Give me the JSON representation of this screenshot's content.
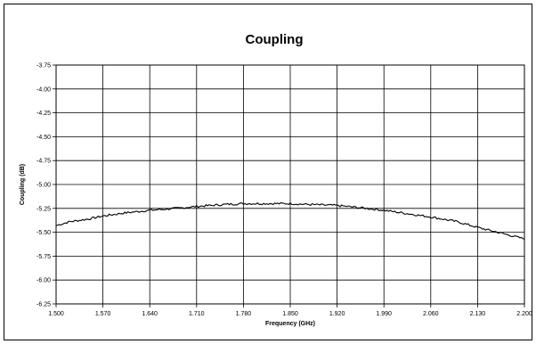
{
  "chart_data": {
    "type": "line",
    "title": "Coupling",
    "xlabel": "Frequency (GHz)",
    "ylabel": "Coupling (dB)",
    "xlim": [
      1.5,
      2.2
    ],
    "ylim": [
      -6.25,
      -3.75
    ],
    "x_ticks": [
      "1.500",
      "1.570",
      "1.640",
      "1.710",
      "1.780",
      "1.850",
      "1.920",
      "1.990",
      "2.060",
      "2.130",
      "2.200"
    ],
    "y_ticks": [
      "-3.75",
      "-4.00",
      "-4.25",
      "-4.50",
      "-4.75",
      "-5.00",
      "-5.25",
      "-5.50",
      "-5.75",
      "-6.00",
      "-6.25"
    ],
    "grid": true,
    "legend": "none",
    "line_color": "#000000",
    "series": [
      {
        "x": [
          1.5,
          1.52,
          1.55,
          1.57,
          1.6,
          1.64,
          1.68,
          1.71,
          1.75,
          1.78,
          1.81,
          1.85,
          1.88,
          1.92,
          1.95,
          1.99,
          2.02,
          2.06,
          2.1,
          2.13,
          2.16,
          2.2
        ],
        "values": [
          -5.43,
          -5.39,
          -5.36,
          -5.33,
          -5.3,
          -5.27,
          -5.25,
          -5.23,
          -5.21,
          -5.2,
          -5.2,
          -5.2,
          -5.21,
          -5.22,
          -5.24,
          -5.27,
          -5.3,
          -5.34,
          -5.39,
          -5.45,
          -5.5,
          -5.57
        ]
      }
    ]
  }
}
